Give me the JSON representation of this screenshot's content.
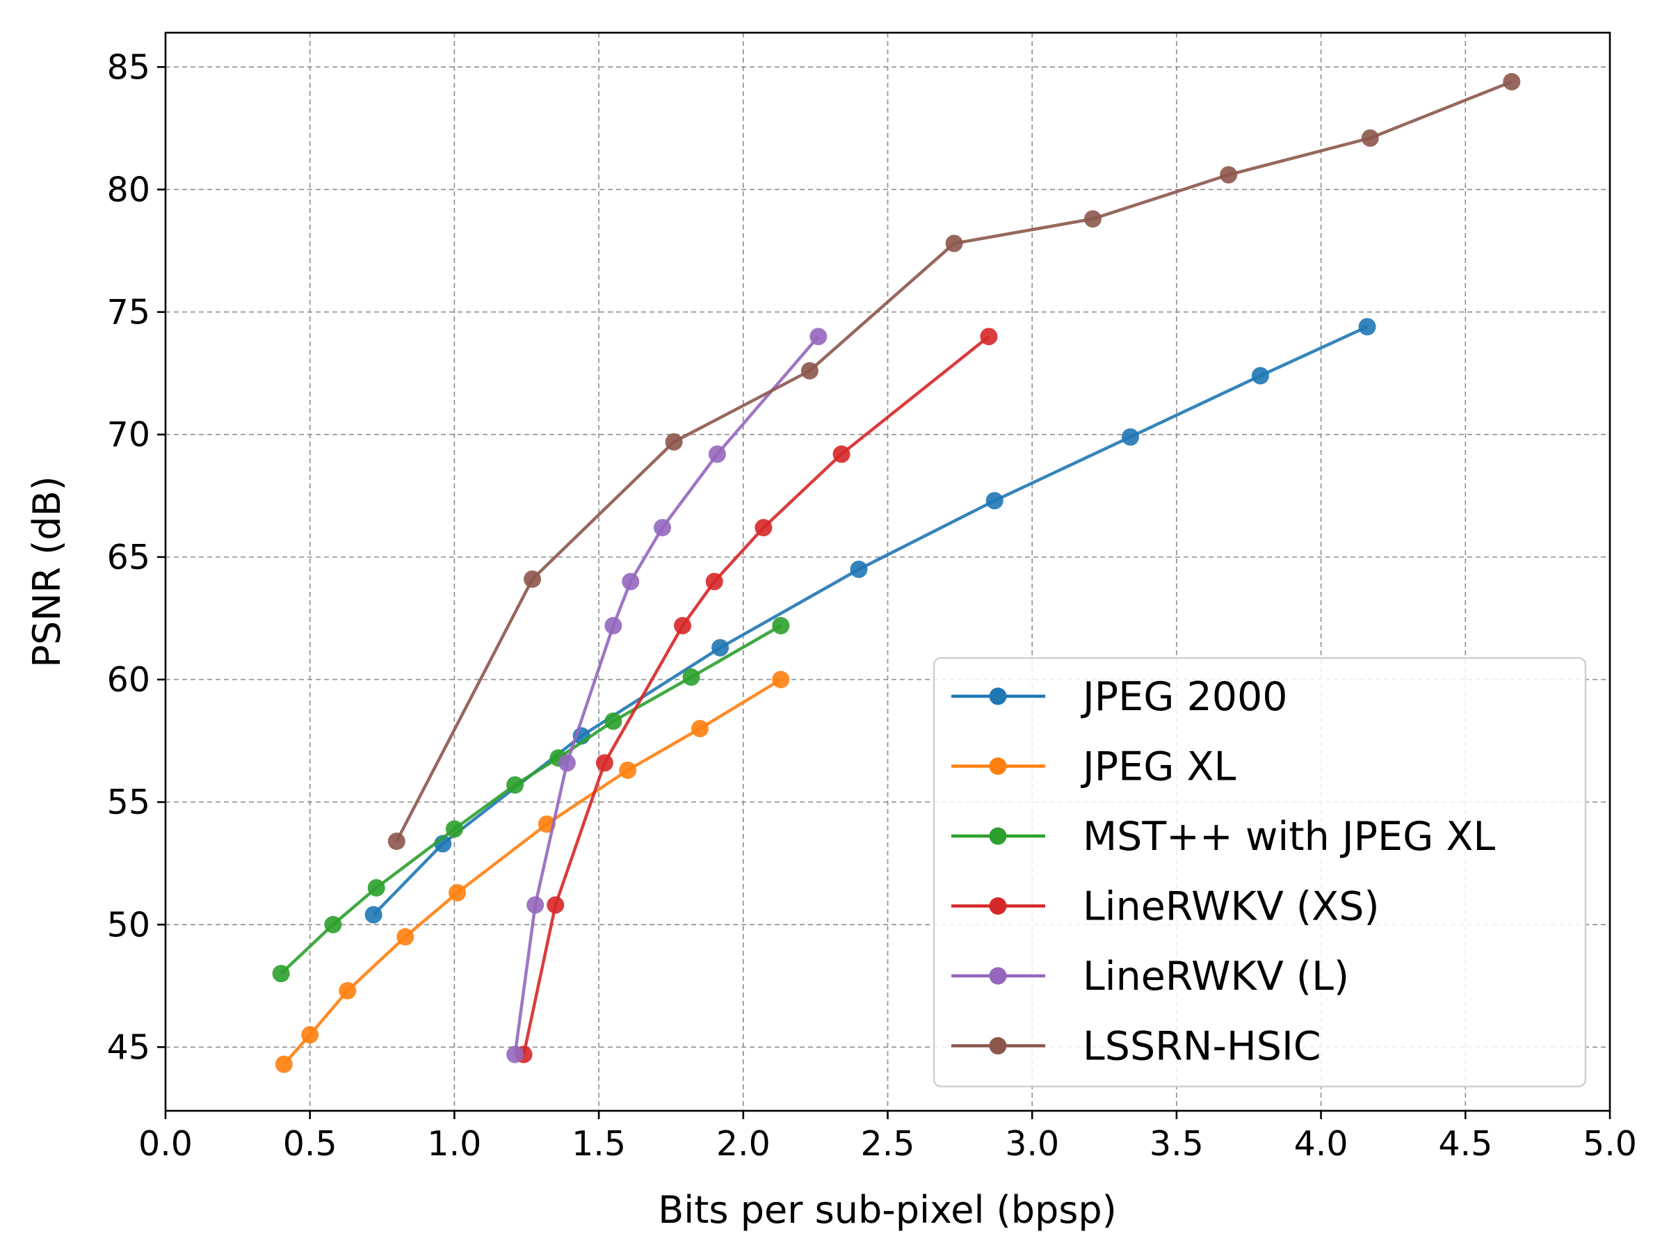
{
  "chart_data": {
    "type": "line",
    "title": "",
    "xlabel": "Bits per sub-pixel (bpsp)",
    "ylabel": "PSNR (dB)",
    "xlim": [
      0.0,
      5.0
    ],
    "ylim": [
      42.4,
      86.4
    ],
    "xticks": [
      "0.0",
      "0.5",
      "1.0",
      "1.5",
      "2.0",
      "2.5",
      "3.0",
      "3.5",
      "4.0",
      "4.5",
      "5.0"
    ],
    "yticks": [
      "45",
      "50",
      "55",
      "60",
      "65",
      "70",
      "75",
      "80",
      "85"
    ],
    "grid": true,
    "legend_position": "lower right",
    "series": [
      {
        "name": "JPEG 2000",
        "color": "#1f77b4",
        "x": [
          0.72,
          0.96,
          1.44,
          1.92,
          2.4,
          2.87,
          3.34,
          3.79,
          4.16
        ],
        "y": [
          50.4,
          53.3,
          57.7,
          61.3,
          64.5,
          67.3,
          69.9,
          72.4,
          74.4
        ]
      },
      {
        "name": "JPEG XL",
        "color": "#ff7f0e",
        "x": [
          0.41,
          0.5,
          0.63,
          0.83,
          1.01,
          1.32,
          1.6,
          1.85,
          2.13
        ],
        "y": [
          44.3,
          45.5,
          47.3,
          49.5,
          51.3,
          54.1,
          56.3,
          58.0,
          60.0
        ]
      },
      {
        "name": "MST++ with JPEG XL",
        "color": "#2ca02c",
        "x": [
          0.4,
          0.58,
          0.73,
          1.0,
          1.21,
          1.36,
          1.55,
          1.82,
          2.13
        ],
        "y": [
          48.0,
          50.0,
          51.5,
          53.9,
          55.7,
          56.8,
          58.3,
          60.1,
          62.2
        ]
      },
      {
        "name": "LineRWKV (XS)",
        "color": "#d62728",
        "x": [
          1.24,
          1.35,
          1.52,
          1.79,
          1.9,
          2.07,
          2.34,
          2.85
        ],
        "y": [
          44.7,
          50.8,
          56.6,
          62.2,
          64.0,
          66.2,
          69.2,
          74.0
        ]
      },
      {
        "name": "LineRWKV (L)",
        "color": "#9467bd",
        "x": [
          1.21,
          1.28,
          1.39,
          1.55,
          1.61,
          1.72,
          1.91,
          2.26
        ],
        "y": [
          44.7,
          50.8,
          56.6,
          62.2,
          64.0,
          66.2,
          69.2,
          74.0
        ]
      },
      {
        "name": "LSSRN-HSIC",
        "color": "#8c564b",
        "x": [
          0.8,
          1.27,
          1.76,
          2.23,
          2.73,
          3.21,
          3.68,
          4.17,
          4.66
        ],
        "y": [
          53.4,
          64.1,
          69.7,
          72.6,
          77.8,
          78.8,
          80.6,
          82.1,
          84.4
        ]
      }
    ]
  }
}
